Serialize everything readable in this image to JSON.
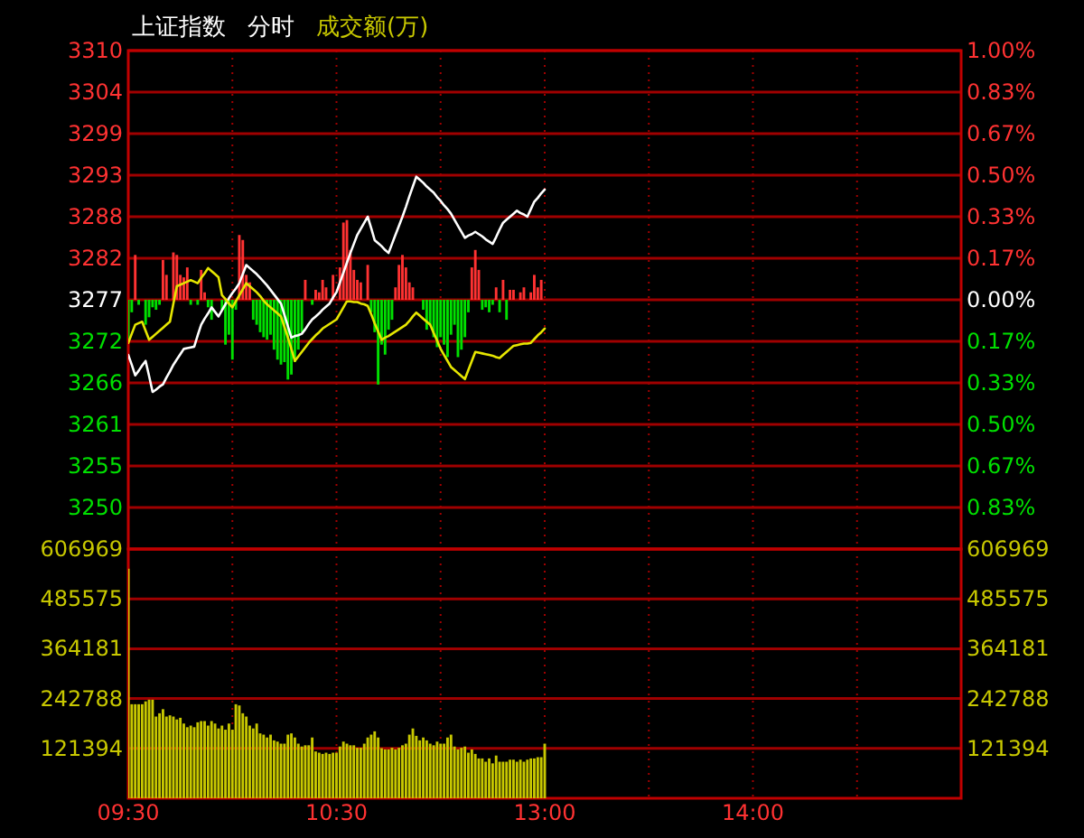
{
  "chart_data": [
    {
      "type": "line",
      "title": "上证指数",
      "subtitle": "分时",
      "annotations": [
        "成交额(万)"
      ],
      "grid": true,
      "tick_labels": "y",
      "categories": [
        null,
        null,
        null,
        null,
        null,
        null,
        null,
        null,
        null,
        null,
        null,
        null,
        null,
        null,
        null,
        null,
        null,
        null,
        null,
        null,
        null,
        null,
        null,
        null,
        null,
        null,
        null,
        null,
        null,
        null,
        null,
        null,
        null,
        null,
        null,
        null,
        null,
        null,
        null,
        null,
        null,
        null,
        null,
        null,
        null,
        null,
        null,
        null,
        null,
        null,
        null,
        null,
        null,
        null,
        null,
        null,
        null,
        null,
        null,
        null,
        null,
        null,
        null,
        null,
        null,
        null,
        null,
        null,
        null,
        null,
        null,
        null,
        null,
        null,
        null,
        null,
        null,
        null,
        null,
        null,
        null,
        null,
        null,
        null,
        null,
        null,
        null,
        null,
        null,
        null,
        null,
        null,
        null,
        null,
        null,
        null,
        null,
        null,
        null,
        null,
        null,
        null,
        null,
        null,
        null,
        null,
        null,
        null,
        null,
        null,
        null,
        null,
        null,
        null,
        null,
        null,
        null,
        null,
        null,
        null,
        null,
        null,
        null,
        null,
        null,
        null,
        null,
        null,
        null,
        null,
        null,
        null,
        null,
        null,
        null,
        null,
        null,
        null,
        null,
        null,
        null,
        null,
        null,
        null,
        null,
        null,
        null,
        null,
        null,
        null,
        null,
        null,
        null,
        null,
        null,
        null,
        null,
        null,
        null,
        null,
        null,
        null,
        null,
        null,
        null,
        null,
        null,
        null,
        null,
        null,
        null,
        null,
        null,
        null,
        null,
        null,
        null,
        null,
        null,
        null,
        null,
        null,
        null,
        null,
        null,
        null,
        null,
        null,
        null,
        null,
        null,
        null,
        null,
        null,
        null,
        null,
        null,
        null,
        null,
        null,
        null,
        null,
        null,
        null,
        null,
        null,
        null,
        null,
        null,
        null,
        null,
        null,
        null,
        null,
        null,
        null,
        null,
        null,
        null,
        null,
        null,
        null,
        null,
        null,
        null,
        null,
        null,
        null,
        null,
        null,
        null,
        null,
        null,
        null,
        null,
        null,
        null,
        null,
        null,
        null,
        null
      ],
      "ylim": [
        3244,
        3310
      ],
      "yticks": [
        {
          "value": 3310,
          "label": "3310"
        },
        {
          "value": 3304.5,
          "label": "3304"
        },
        {
          "value": 3299,
          "label": "3299"
        },
        {
          "value": 3293.5,
          "label": "3293"
        },
        {
          "value": 3288,
          "label": "3288"
        },
        {
          "value": 3282.5,
          "label": "3282"
        },
        {
          "value": 3277,
          "label": "3277"
        },
        {
          "value": 3271.5,
          "label": "3272"
        },
        {
          "value": 3266,
          "label": "3266"
        },
        {
          "value": 3260.5,
          "label": "3261"
        },
        {
          "value": 3255,
          "label": "3255"
        },
        {
          "value": 3249.5,
          "label": "3250"
        }
      ],
      "y2lim": [
        -1.0,
        1.0
      ],
      "y2ticks": [
        {
          "value": 1.0,
          "label": "1.00%"
        },
        {
          "value": 0.833,
          "label": "0.83%"
        },
        {
          "value": 0.667,
          "label": "0.67%"
        },
        {
          "value": 0.5,
          "label": "0.50%"
        },
        {
          "value": 0.333,
          "label": "0.33%"
        },
        {
          "value": 0.167,
          "label": "0.17%"
        },
        {
          "value": 0,
          "label": "0.00%"
        },
        {
          "value": -0.167,
          "label": "0.17%"
        },
        {
          "value": -0.333,
          "label": "0.33%"
        },
        {
          "value": -0.5,
          "label": "0.50%"
        },
        {
          "value": -0.667,
          "label": "0.67%"
        },
        {
          "value": -0.833,
          "label": "0.83%"
        }
      ],
      "series": [
        {
          "type": "bar",
          "axis": "y2",
          "color": "#ff3232",
          "values": [
            null,
            null,
            0.18,
            null,
            null,
            null,
            null,
            null,
            null,
            null,
            0.16,
            0.1,
            null,
            0.19,
            0.18,
            0.1,
            0.09,
            0.13,
            null,
            null,
            null,
            0.12,
            0.03,
            null,
            null,
            null,
            null,
            null,
            null,
            null,
            null,
            null,
            0.26,
            0.24,
            0.1,
            0.07,
            null,
            null,
            null,
            null,
            null,
            null,
            null,
            null,
            null,
            null,
            null,
            null,
            null,
            null,
            null,
            0.08,
            null,
            null,
            0.04,
            0.03,
            0.08,
            0.05,
            null,
            0.1,
            null,
            0.13,
            0.31,
            0.32,
            0.2,
            0.12,
            0.08,
            0.07,
            null,
            0.14,
            null,
            null,
            null,
            null,
            null,
            null,
            null,
            0.05,
            0.14,
            0.18,
            0.13,
            0.07,
            0.05,
            null,
            null,
            null,
            null,
            null,
            null,
            null,
            null,
            null,
            null,
            null,
            null,
            null,
            null,
            null,
            null,
            0.13,
            0.2,
            0.12,
            null,
            null,
            null,
            null,
            0.05,
            null,
            0.08,
            null,
            0.04,
            0.04,
            null,
            0.03,
            0.05,
            null,
            0.03,
            0.1,
            0.05,
            0.08,
            null,
            null,
            null,
            null,
            null,
            null,
            null,
            null,
            null,
            null,
            null,
            null,
            null,
            null,
            null,
            null,
            null,
            null,
            null,
            null,
            null,
            null,
            null,
            null,
            null,
            null,
            null,
            null,
            null,
            null,
            null,
            null,
            null,
            null,
            null,
            null,
            null,
            null,
            null,
            null,
            null,
            null,
            null,
            null,
            null,
            null,
            null,
            null,
            null,
            null,
            null,
            null,
            null,
            null,
            null,
            null,
            null,
            null,
            null,
            null,
            null,
            null,
            null,
            null,
            null,
            null,
            null,
            null,
            null,
            null,
            null,
            null,
            null,
            null,
            null,
            null,
            null,
            null,
            null,
            null,
            null,
            null,
            null,
            null,
            null,
            null,
            null,
            null,
            null,
            null,
            null,
            null,
            null,
            null,
            null,
            null,
            null,
            null,
            null,
            null,
            null,
            null,
            null,
            null,
            null,
            null,
            null,
            null,
            null,
            null,
            null,
            null,
            null,
            null,
            null,
            null,
            null,
            null,
            null,
            null,
            null
          ]
        },
        {
          "type": "bar",
          "axis": "y2",
          "color": "#00e000",
          "values": [
            -0.16,
            -0.05,
            null,
            -0.02,
            null,
            -0.1,
            -0.07,
            -0.03,
            -0.04,
            -0.02,
            null,
            null,
            null,
            null,
            null,
            null,
            null,
            null,
            -0.02,
            null,
            -0.02,
            null,
            null,
            -0.03,
            -0.08,
            null,
            null,
            -0.04,
            -0.18,
            -0.14,
            -0.24,
            -0.04,
            null,
            null,
            null,
            null,
            -0.08,
            -0.1,
            -0.13,
            -0.15,
            -0.16,
            -0.14,
            -0.2,
            -0.24,
            -0.26,
            -0.25,
            -0.32,
            -0.3,
            -0.25,
            -0.2,
            -0.13,
            null,
            null,
            -0.02,
            null,
            null,
            null,
            null,
            null,
            null,
            null,
            null,
            null,
            null,
            null,
            null,
            null,
            null,
            null,
            null,
            -0.05,
            -0.13,
            -0.34,
            -0.18,
            -0.22,
            -0.12,
            -0.08,
            null,
            null,
            null,
            null,
            null,
            null,
            null,
            null,
            -0.04,
            -0.12,
            -0.1,
            -0.15,
            -0.19,
            -0.15,
            -0.18,
            -0.23,
            -0.14,
            -0.1,
            -0.23,
            -0.2,
            -0.15,
            -0.05,
            null,
            null,
            null,
            -0.04,
            -0.03,
            -0.05,
            -0.02,
            null,
            -0.05,
            null,
            -0.08,
            null,
            null,
            null,
            null,
            null,
            null,
            null,
            null,
            null,
            null,
            null,
            null,
            null,
            null,
            null,
            null,
            null,
            null,
            null,
            null,
            null,
            null,
            null,
            null,
            null,
            null,
            null,
            null,
            null,
            null,
            null,
            null,
            null,
            null,
            null,
            null,
            null,
            null,
            null,
            null,
            null,
            null,
            null,
            null,
            null,
            null,
            null,
            null,
            null,
            null,
            null,
            null,
            null,
            null,
            null,
            null,
            null,
            null,
            null,
            null,
            null,
            null,
            null,
            null,
            null,
            null,
            null,
            null,
            null,
            null,
            null,
            null,
            null,
            null,
            null,
            null,
            null,
            null,
            null,
            null,
            null,
            null,
            null,
            null,
            null,
            null,
            null,
            null,
            null,
            null,
            null,
            null,
            null,
            null,
            null,
            null,
            null,
            null,
            null,
            null,
            null,
            null,
            null,
            null,
            null,
            null,
            null,
            null,
            null,
            null,
            null,
            null,
            null,
            null,
            null,
            null,
            null,
            null,
            null,
            null,
            null,
            null,
            null,
            null,
            null,
            null,
            null,
            null,
            null,
            null,
            null
          ]
        },
        {
          "type": "line",
          "color": "#ffffff",
          "values": [
            3269.7,
            3268.4,
            3267.0,
            3267.6,
            3268.3,
            3268.9,
            3266.9,
            3264.8,
            3265.1,
            3265.5,
            3265.8,
            3266.7,
            3267.5,
            3268.4,
            3269.1,
            3269.8,
            3270.5,
            3270.6,
            3270.7,
            3270.8,
            3272.3,
            3273.7,
            3274.5,
            3275.2,
            3276.0,
            3275.4,
            3274.8,
            3275.6,
            3276.4,
            3277.2,
            3277.9,
            3278.5,
            3279.2,
            3280.4,
            3281.6,
            3281.2,
            3280.8,
            3280.4,
            3279.9,
            3279.4,
            3278.9,
            3278.3,
            3277.7,
            3277.1,
            3276.5,
            3275.0,
            3273.5,
            3272.0,
            3272.2,
            3272.3,
            3272.5,
            3273.1,
            3273.8,
            3274.4,
            3274.8,
            3275.2,
            3275.7,
            3276.1,
            3276.5,
            3277.3,
            3278.0,
            3279.3,
            3280.6,
            3281.9,
            3283.2,
            3284.4,
            3285.6,
            3286.4,
            3287.2,
            3288.0,
            3286.5,
            3284.9,
            3284.5,
            3284.1,
            3283.6,
            3283.2,
            3284.4,
            3285.6,
            3286.8,
            3288.0,
            3289.3,
            3290.7,
            3292.0,
            3293.3,
            3292.9,
            3292.5,
            3292.0,
            3291.6,
            3291.2,
            3290.6,
            3290.1,
            3289.5,
            3289.0,
            3288.4,
            3287.6,
            3286.8,
            3286.0,
            3285.2,
            3285.5,
            3285.7,
            3286.0,
            3285.7,
            3285.4,
            3285.0,
            3284.7,
            3284.4,
            3285.3,
            3286.3,
            3287.2,
            3287.6,
            3288.0,
            3288.4,
            3288.8,
            3288.5,
            3288.3,
            3288.0,
            3289.0,
            3290.0,
            3290.5,
            3291.1,
            3291.6,
            null,
            null,
            null,
            null,
            null,
            null,
            null,
            null,
            null,
            null,
            null,
            null,
            null,
            null,
            null,
            null,
            null,
            null,
            null,
            null,
            null,
            null,
            null,
            null,
            null,
            null,
            null,
            null,
            null,
            null,
            null,
            null,
            null,
            null,
            null,
            null,
            null,
            null,
            null,
            null,
            null,
            null,
            null,
            null,
            null,
            null,
            null,
            null,
            null,
            null,
            null,
            null,
            null,
            null,
            null,
            null,
            null,
            null,
            null,
            null,
            null,
            null,
            null,
            null,
            null,
            null,
            null,
            null,
            null,
            null,
            null,
            null,
            null,
            null,
            null,
            null,
            null,
            null,
            null,
            null,
            null,
            null,
            null,
            null,
            null,
            null,
            null,
            null,
            null,
            null,
            null,
            null,
            null,
            null,
            null,
            null,
            null,
            null,
            null,
            null,
            null,
            null,
            null,
            null,
            null,
            null,
            null,
            null,
            null,
            null,
            null,
            null,
            null,
            null,
            null,
            null,
            null,
            null,
            null,
            null
          ]
        },
        {
          "type": "line",
          "color": "#e6e600",
          "values": [
            3271.3,
            3272.5,
            3273.7,
            3273.9,
            3274.1,
            3272.9,
            3271.7,
            3272.1,
            3272.5,
            3272.9,
            3273.3,
            3273.7,
            3274.1,
            3276.5,
            3278.8,
            3279.0,
            3279.2,
            3279.4,
            3279.6,
            3279.4,
            3279.2,
            3279.9,
            3280.5,
            3281.2,
            3280.8,
            3280.4,
            3280.0,
            3277.6,
            3277.1,
            3276.5,
            3276.0,
            3276.8,
            3277.6,
            3278.4,
            3279.2,
            3278.8,
            3278.4,
            3278.0,
            3277.5,
            3276.9,
            3276.4,
            3276.0,
            3275.6,
            3275.2,
            3274.8,
            3273.4,
            3272.0,
            3270.5,
            3268.9,
            3269.5,
            3270.1,
            3270.7,
            3271.3,
            3271.8,
            3272.3,
            3272.7,
            3273.2,
            3273.5,
            3273.8,
            3274.1,
            3274.4,
            3275.2,
            3276.0,
            3276.8,
            3276.8,
            3276.7,
            3276.7,
            3276.5,
            3276.4,
            3276.2,
            3275.1,
            3273.9,
            3272.8,
            3271.7,
            3272.0,
            3272.2,
            3272.5,
            3272.8,
            3273.1,
            3273.4,
            3273.7,
            3274.2,
            3274.8,
            3275.3,
            3274.9,
            3274.5,
            3274.1,
            3273.7,
            3272.6,
            3271.6,
            3270.5,
            3269.7,
            3268.9,
            3268.1,
            3267.7,
            3267.3,
            3266.9,
            3266.5,
            3267.7,
            3268.9,
            3270.1,
            3270.0,
            3269.9,
            3269.8,
            3269.7,
            3269.6,
            3269.4,
            3269.3,
            3269.7,
            3270.1,
            3270.5,
            3270.9,
            3271.0,
            3271.1,
            3271.2,
            3271.2,
            3271.3,
            3271.8,
            3272.3,
            3272.7,
            3273.2,
            null,
            null,
            null,
            null,
            null,
            null,
            null,
            null,
            null,
            null,
            null,
            null,
            null,
            null,
            null,
            null,
            null,
            null,
            null,
            null,
            null,
            null,
            null,
            null,
            null,
            null,
            null,
            null,
            null,
            null,
            null,
            null,
            null,
            null,
            null,
            null,
            null,
            null,
            null,
            null,
            null,
            null,
            null,
            null,
            null,
            null,
            null,
            null,
            null,
            null,
            null,
            null,
            null,
            null,
            null,
            null,
            null,
            null,
            null,
            null,
            null,
            null,
            null,
            null,
            null,
            null,
            null,
            null,
            null,
            null,
            null,
            null,
            null,
            null,
            null,
            null,
            null,
            null,
            null,
            null,
            null,
            null,
            null,
            null,
            null,
            null,
            null,
            null,
            null,
            null,
            null,
            null,
            null,
            null,
            null,
            null,
            null,
            null,
            null,
            null,
            null,
            null,
            null,
            null,
            null,
            null,
            null,
            null,
            null,
            null,
            null,
            null,
            null,
            null,
            null,
            null,
            null,
            null,
            null,
            null
          ]
        }
      ]
    },
    {
      "type": "bar",
      "grid": true,
      "color": "#c8c800",
      "categories": [
        "09:30",
        null,
        null,
        null,
        null,
        null,
        null,
        null,
        null,
        null,
        null,
        null,
        null,
        null,
        null,
        null,
        null,
        null,
        null,
        null,
        null,
        null,
        null,
        null,
        null,
        null,
        null,
        null,
        null,
        null,
        null,
        null,
        null,
        null,
        null,
        null,
        null,
        null,
        null,
        null,
        null,
        null,
        null,
        null,
        null,
        null,
        null,
        null,
        null,
        null,
        null,
        null,
        null,
        null,
        null,
        null,
        null,
        null,
        null,
        null,
        "10:30",
        null,
        null,
        null,
        null,
        null,
        null,
        null,
        null,
        null,
        null,
        null,
        null,
        null,
        null,
        null,
        null,
        null,
        null,
        null,
        null,
        null,
        null,
        null,
        null,
        null,
        null,
        null,
        null,
        null,
        null,
        null,
        null,
        null,
        null,
        null,
        null,
        null,
        null,
        null,
        null,
        null,
        null,
        null,
        null,
        null,
        null,
        null,
        null,
        null,
        null,
        null,
        null,
        null,
        null,
        null,
        null,
        null,
        null,
        null,
        "13:00",
        null,
        null,
        null,
        null,
        null,
        null,
        null,
        null,
        null,
        null,
        null,
        null,
        null,
        null,
        null,
        null,
        null,
        null,
        null,
        null,
        null,
        null,
        null,
        null,
        null,
        null,
        null,
        null,
        null,
        null,
        null,
        null,
        null,
        null,
        null,
        null,
        null,
        null,
        null,
        null,
        null,
        null,
        null,
        null,
        null,
        null,
        null,
        null,
        null,
        null,
        null,
        null,
        null,
        null,
        null,
        null,
        null,
        null,
        null,
        "14:00",
        null,
        null,
        null,
        null,
        null,
        null,
        null,
        null,
        null,
        null,
        null,
        null,
        null,
        null,
        null,
        null,
        null,
        null,
        null,
        null,
        null,
        null,
        null,
        null,
        null,
        null,
        null,
        null,
        null,
        null,
        null,
        null,
        null,
        null,
        null,
        null,
        null,
        null,
        null,
        null,
        null,
        null,
        null,
        null,
        null,
        null,
        null,
        null,
        null,
        null,
        null,
        null,
        null,
        null,
        null,
        null,
        null,
        null,
        null,
        null
      ],
      "ylim": [
        0,
        606969
      ],
      "yticks": [
        121394,
        242788,
        364181,
        485575,
        606969
      ],
      "y2lim": [
        0,
        606969
      ],
      "y2ticks": [
        121394,
        242788,
        364181,
        485575,
        606969
      ],
      "values": [
        559000,
        229000,
        229000,
        229000,
        229000,
        236000,
        240000,
        240000,
        199000,
        207000,
        217000,
        199000,
        202000,
        199000,
        192000,
        196000,
        182000,
        173000,
        177000,
        173000,
        185000,
        188000,
        188000,
        177000,
        188000,
        182000,
        170000,
        177000,
        167000,
        182000,
        167000,
        229000,
        226000,
        207000,
        199000,
        177000,
        170000,
        182000,
        158000,
        155000,
        148000,
        155000,
        141000,
        138000,
        133000,
        133000,
        155000,
        158000,
        148000,
        133000,
        126000,
        129000,
        129000,
        148000,
        114000,
        111000,
        108000,
        111000,
        108000,
        111000,
        111000,
        126000,
        138000,
        133000,
        129000,
        129000,
        123000,
        123000,
        133000,
        148000,
        155000,
        163000,
        148000,
        122000,
        119000,
        119000,
        123000,
        119000,
        123000,
        129000,
        133000,
        155000,
        170000,
        152000,
        141000,
        148000,
        141000,
        133000,
        129000,
        138000,
        133000,
        133000,
        148000,
        155000,
        126000,
        119000,
        123000,
        126000,
        111000,
        119000,
        108000,
        97000,
        97000,
        89000,
        97000,
        85000,
        104000,
        89000,
        89000,
        89000,
        94000,
        94000,
        89000,
        94000,
        89000,
        94000,
        97000,
        97000,
        100000,
        100000,
        133000,
        null,
        null,
        null,
        null,
        null,
        null,
        null,
        null,
        null,
        null,
        null,
        null,
        null,
        null,
        null,
        null,
        null,
        null,
        null,
        null,
        null,
        null,
        null,
        null,
        null,
        null,
        null,
        null,
        null,
        null,
        null,
        null,
        null,
        null,
        null,
        null,
        null,
        null,
        null,
        null,
        null,
        null,
        null,
        null,
        null,
        null,
        null,
        null,
        null,
        null,
        null,
        null,
        null,
        null,
        null,
        null,
        null,
        null,
        null,
        null,
        null,
        null,
        null,
        null,
        null,
        null,
        null,
        null,
        null,
        null,
        null,
        null,
        null,
        null,
        null,
        null,
        null,
        null,
        null,
        null,
        null,
        null,
        null,
        null,
        null,
        null,
        null,
        null,
        null,
        null,
        null,
        null,
        null,
        null,
        null,
        null,
        null,
        null,
        null,
        null,
        null,
        null,
        null,
        null,
        null,
        null,
        null,
        null,
        null,
        null,
        null,
        null,
        null,
        null,
        null,
        null,
        null,
        null,
        null,
        null
      ]
    }
  ]
}
